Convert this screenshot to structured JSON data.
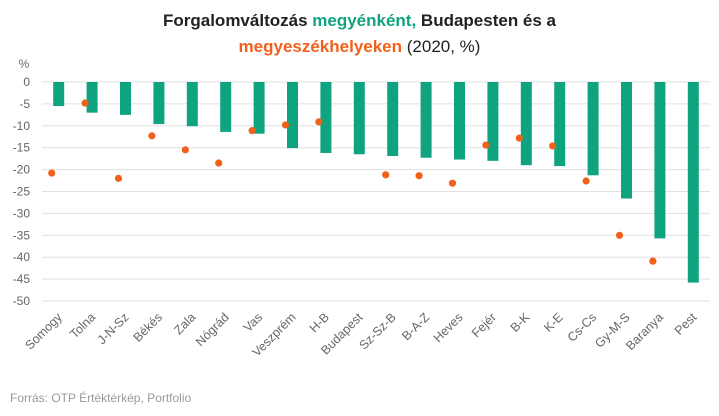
{
  "title": {
    "part1": "Forgalomváltozás ",
    "part2": "megyénként,",
    "part3": " Budapesten és a",
    "part4": "megyeszékhelyeken",
    "part5": " (2020, %)"
  },
  "source": "Forrás: OTP Értéktérkép, Portfolio",
  "colors": {
    "bar": "#0fa37f",
    "dot": "#f0611c",
    "grid": "#e0e0e0",
    "text": "#666666"
  },
  "chart_data": {
    "type": "bar",
    "ylabel": "%",
    "ylim": [
      -50,
      0
    ],
    "yticks": [
      0,
      -5,
      -10,
      -15,
      -20,
      -25,
      -30,
      -35,
      -40,
      -45,
      -50
    ],
    "categories": [
      "Somogy",
      "Tolna",
      "J-N-Sz",
      "Békés",
      "Zala",
      "Nógrád",
      "Vas",
      "Veszprém",
      "H-B",
      "Budapest",
      "Sz-Sz-B",
      "B-A-Z",
      "Heves",
      "Fejér",
      "B-K",
      "K-E",
      "Cs-Cs",
      "Gy-M-S",
      "Baranya",
      "Pest"
    ],
    "series": [
      {
        "type": "bar",
        "values": [
          -5.5,
          -7.0,
          -7.5,
          -9.6,
          -10.1,
          -11.4,
          -11.8,
          -15.1,
          -16.2,
          -16.5,
          -16.9,
          -17.3,
          -17.7,
          -18.0,
          -19.0,
          -19.2,
          -21.3,
          -26.6,
          -35.7,
          -45.8
        ]
      },
      {
        "type": "scatter",
        "values": [
          -20.8,
          -4.8,
          -22.0,
          -12.3,
          -15.5,
          -18.5,
          -11.1,
          -9.8,
          -9.1,
          null,
          -21.2,
          -21.4,
          -23.1,
          -14.4,
          -12.8,
          -14.6,
          -22.6,
          -35.0,
          -40.9,
          null
        ]
      }
    ],
    "grid": true
  }
}
